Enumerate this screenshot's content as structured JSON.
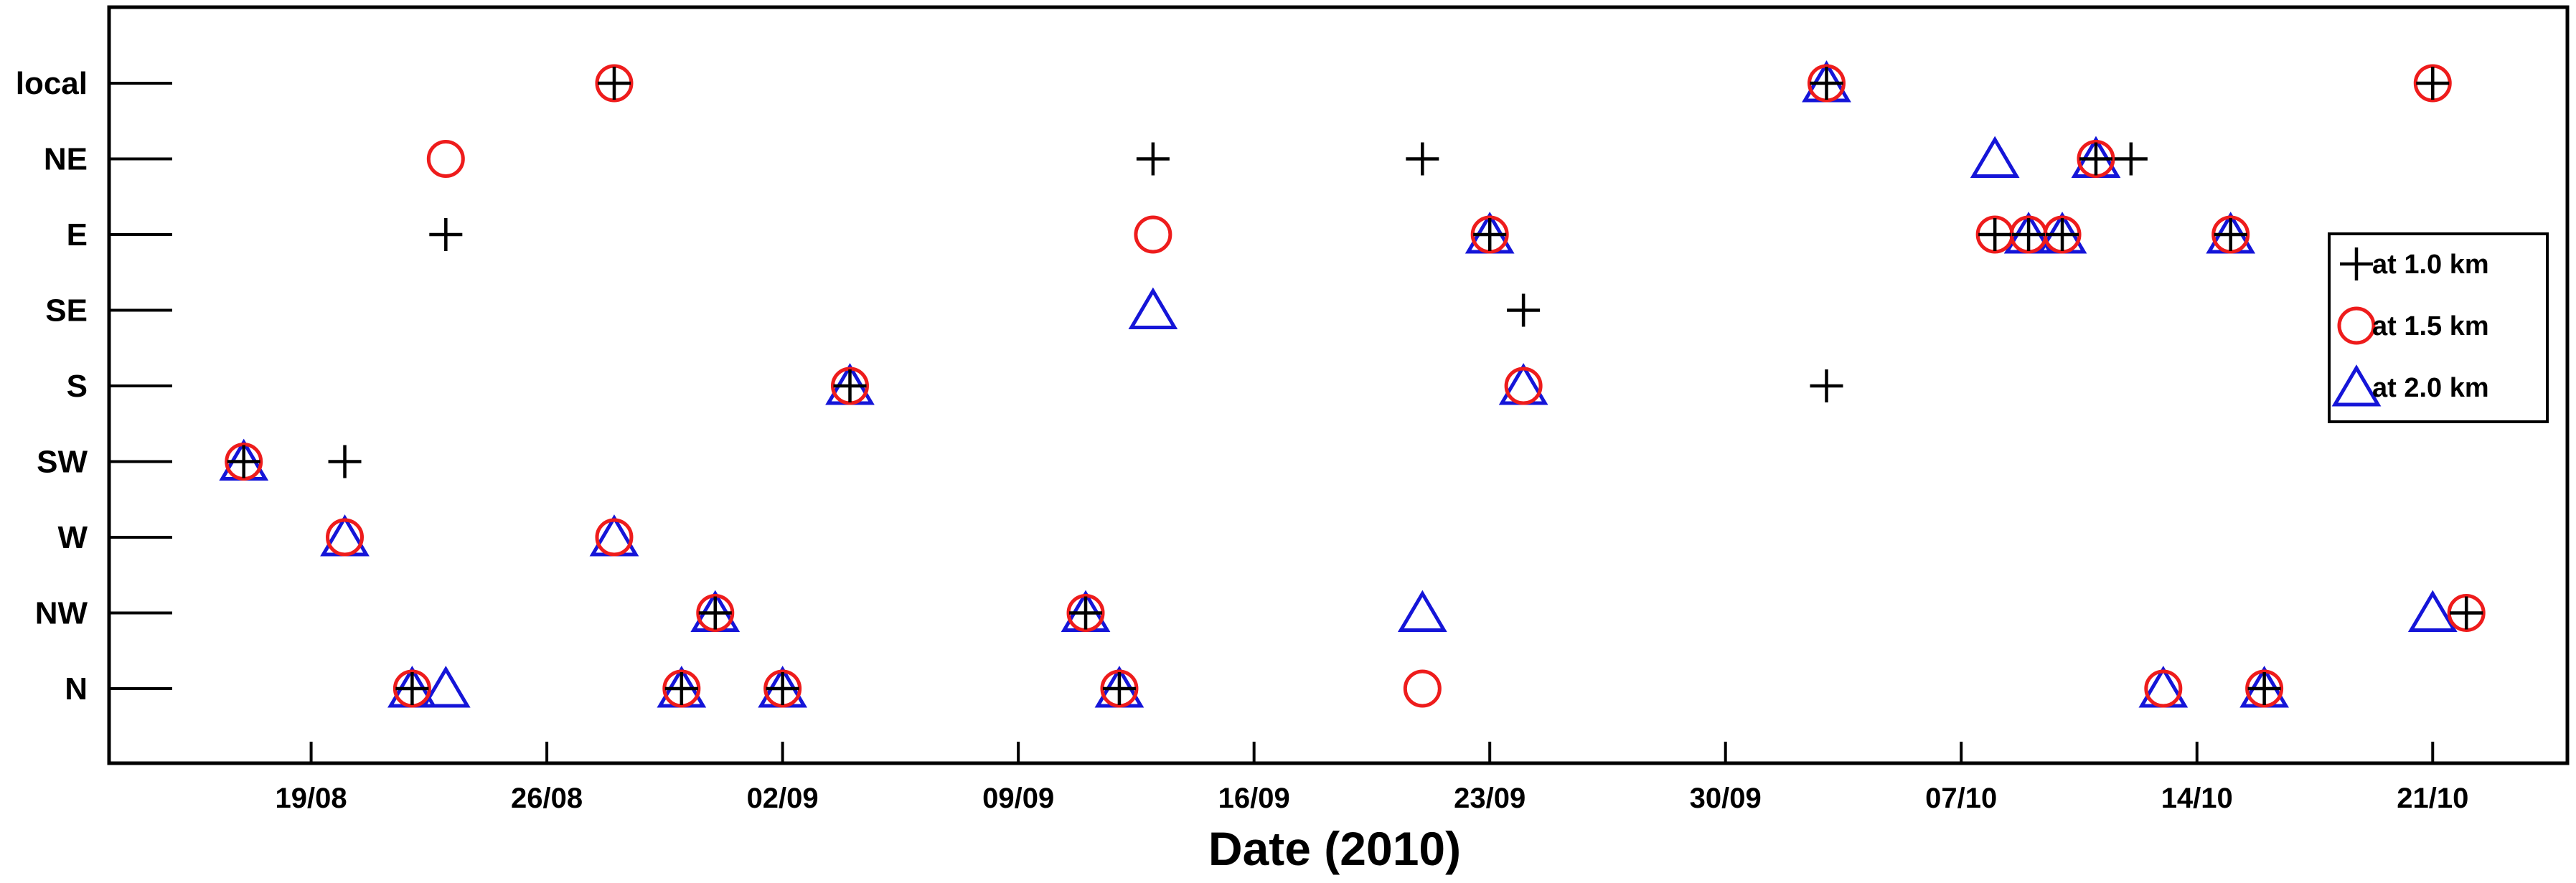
{
  "chart_data": {
    "type": "scatter",
    "title": "",
    "xlabel": "Date (2010)",
    "ylabel": "",
    "x_axis": {
      "kind": "date",
      "range": [
        "2010-08-13",
        "2010-10-25"
      ],
      "ticks": [
        {
          "date": "2010-08-19",
          "label": "19/08"
        },
        {
          "date": "2010-08-26",
          "label": "26/08"
        },
        {
          "date": "2010-09-02",
          "label": "02/09"
        },
        {
          "date": "2010-09-09",
          "label": "09/09"
        },
        {
          "date": "2010-09-16",
          "label": "16/09"
        },
        {
          "date": "2010-09-23",
          "label": "23/09"
        },
        {
          "date": "2010-09-30",
          "label": "30/09"
        },
        {
          "date": "2010-10-07",
          "label": "07/10"
        },
        {
          "date": "2010-10-14",
          "label": "14/10"
        },
        {
          "date": "2010-10-21",
          "label": "21/10"
        }
      ]
    },
    "categories": [
      "local",
      "NE",
      "E",
      "SE",
      "S",
      "SW",
      "W",
      "NW",
      "N"
    ],
    "grid": false,
    "legend": {
      "position": "right",
      "entries": [
        "at 1.0 km",
        "at 1.5 km",
        "at 2.0 km"
      ]
    },
    "series": [
      {
        "name": "at 1.0 km",
        "marker": "plus",
        "color": "#000000",
        "points": [
          {
            "x": "2010-08-28 00:00",
            "y": "local"
          },
          {
            "x": "2010-10-03 00:00",
            "y": "local"
          },
          {
            "x": "2010-10-21 00:00",
            "y": "local"
          },
          {
            "x": "2010-09-13 00:00",
            "y": "NE"
          },
          {
            "x": "2010-09-21 00:00",
            "y": "NE"
          },
          {
            "x": "2010-10-11 00:00",
            "y": "NE"
          },
          {
            "x": "2010-10-12 01:00",
            "y": "NE"
          },
          {
            "x": "2010-08-23 00:00",
            "y": "E"
          },
          {
            "x": "2010-09-23 00:00",
            "y": "E"
          },
          {
            "x": "2010-10-08 00:00",
            "y": "E"
          },
          {
            "x": "2010-10-09 00:00",
            "y": "E"
          },
          {
            "x": "2010-10-10 00:00",
            "y": "E"
          },
          {
            "x": "2010-10-15 00:00",
            "y": "E"
          },
          {
            "x": "2010-09-24 00:00",
            "y": "SE"
          },
          {
            "x": "2010-09-04 00:00",
            "y": "S"
          },
          {
            "x": "2010-10-03 00:00",
            "y": "S"
          },
          {
            "x": "2010-08-17 00:00",
            "y": "SW"
          },
          {
            "x": "2010-08-20 00:00",
            "y": "SW"
          },
          {
            "x": "2010-08-31 00:00",
            "y": "NW"
          },
          {
            "x": "2010-09-11 00:00",
            "y": "NW"
          },
          {
            "x": "2010-10-22 00:00",
            "y": "NW"
          },
          {
            "x": "2010-08-22 00:00",
            "y": "N"
          },
          {
            "x": "2010-08-30 00:00",
            "y": "N"
          },
          {
            "x": "2010-09-02 00:00",
            "y": "N"
          },
          {
            "x": "2010-09-12 00:00",
            "y": "N"
          },
          {
            "x": "2010-10-16 00:00",
            "y": "N"
          }
        ]
      },
      {
        "name": "at 1.5 km",
        "marker": "circle",
        "color": "#ee1c1c",
        "points": [
          {
            "x": "2010-08-28 00:00",
            "y": "local"
          },
          {
            "x": "2010-10-03 00:00",
            "y": "local"
          },
          {
            "x": "2010-10-21 00:00",
            "y": "local"
          },
          {
            "x": "2010-08-23 00:00",
            "y": "NE"
          },
          {
            "x": "2010-10-11 00:00",
            "y": "NE"
          },
          {
            "x": "2010-09-13 00:00",
            "y": "E"
          },
          {
            "x": "2010-09-23 00:00",
            "y": "E"
          },
          {
            "x": "2010-10-08 00:00",
            "y": "E"
          },
          {
            "x": "2010-10-09 00:00",
            "y": "E"
          },
          {
            "x": "2010-10-10 00:00",
            "y": "E"
          },
          {
            "x": "2010-10-15 00:00",
            "y": "E"
          },
          {
            "x": "2010-09-04 00:00",
            "y": "S"
          },
          {
            "x": "2010-09-24 00:00",
            "y": "S"
          },
          {
            "x": "2010-08-17 00:00",
            "y": "SW"
          },
          {
            "x": "2010-08-20 00:00",
            "y": "W"
          },
          {
            "x": "2010-08-28 00:00",
            "y": "W"
          },
          {
            "x": "2010-08-31 00:00",
            "y": "NW"
          },
          {
            "x": "2010-09-11 00:00",
            "y": "NW"
          },
          {
            "x": "2010-10-22 00:00",
            "y": "NW"
          },
          {
            "x": "2010-08-22 00:00",
            "y": "N"
          },
          {
            "x": "2010-08-30 00:00",
            "y": "N"
          },
          {
            "x": "2010-09-02 00:00",
            "y": "N"
          },
          {
            "x": "2010-09-12 00:00",
            "y": "N"
          },
          {
            "x": "2010-09-21 00:00",
            "y": "N"
          },
          {
            "x": "2010-10-13 00:00",
            "y": "N"
          },
          {
            "x": "2010-10-16 00:00",
            "y": "N"
          }
        ]
      },
      {
        "name": "at 2.0 km",
        "marker": "triangle",
        "color": "#1515d8",
        "points": [
          {
            "x": "2010-10-03 00:00",
            "y": "local"
          },
          {
            "x": "2010-10-08 00:00",
            "y": "NE"
          },
          {
            "x": "2010-10-11 00:00",
            "y": "NE"
          },
          {
            "x": "2010-09-23 00:00",
            "y": "E"
          },
          {
            "x": "2010-10-09 00:00",
            "y": "E"
          },
          {
            "x": "2010-10-10 00:00",
            "y": "E"
          },
          {
            "x": "2010-10-15 00:00",
            "y": "E"
          },
          {
            "x": "2010-09-13 00:00",
            "y": "SE"
          },
          {
            "x": "2010-09-04 00:00",
            "y": "S"
          },
          {
            "x": "2010-09-24 00:00",
            "y": "S"
          },
          {
            "x": "2010-08-17 00:00",
            "y": "SW"
          },
          {
            "x": "2010-08-20 00:00",
            "y": "W"
          },
          {
            "x": "2010-08-28 00:00",
            "y": "W"
          },
          {
            "x": "2010-08-31 00:00",
            "y": "NW"
          },
          {
            "x": "2010-09-11 00:00",
            "y": "NW"
          },
          {
            "x": "2010-09-21 00:00",
            "y": "NW"
          },
          {
            "x": "2010-10-21 00:00",
            "y": "NW"
          },
          {
            "x": "2010-08-22 00:00",
            "y": "N"
          },
          {
            "x": "2010-08-23 00:00",
            "y": "N"
          },
          {
            "x": "2010-08-30 00:00",
            "y": "N"
          },
          {
            "x": "2010-09-02 00:00",
            "y": "N"
          },
          {
            "x": "2010-09-12 00:00",
            "y": "N"
          },
          {
            "x": "2010-10-13 00:00",
            "y": "N"
          },
          {
            "x": "2010-10-16 00:00",
            "y": "N"
          }
        ]
      }
    ]
  }
}
